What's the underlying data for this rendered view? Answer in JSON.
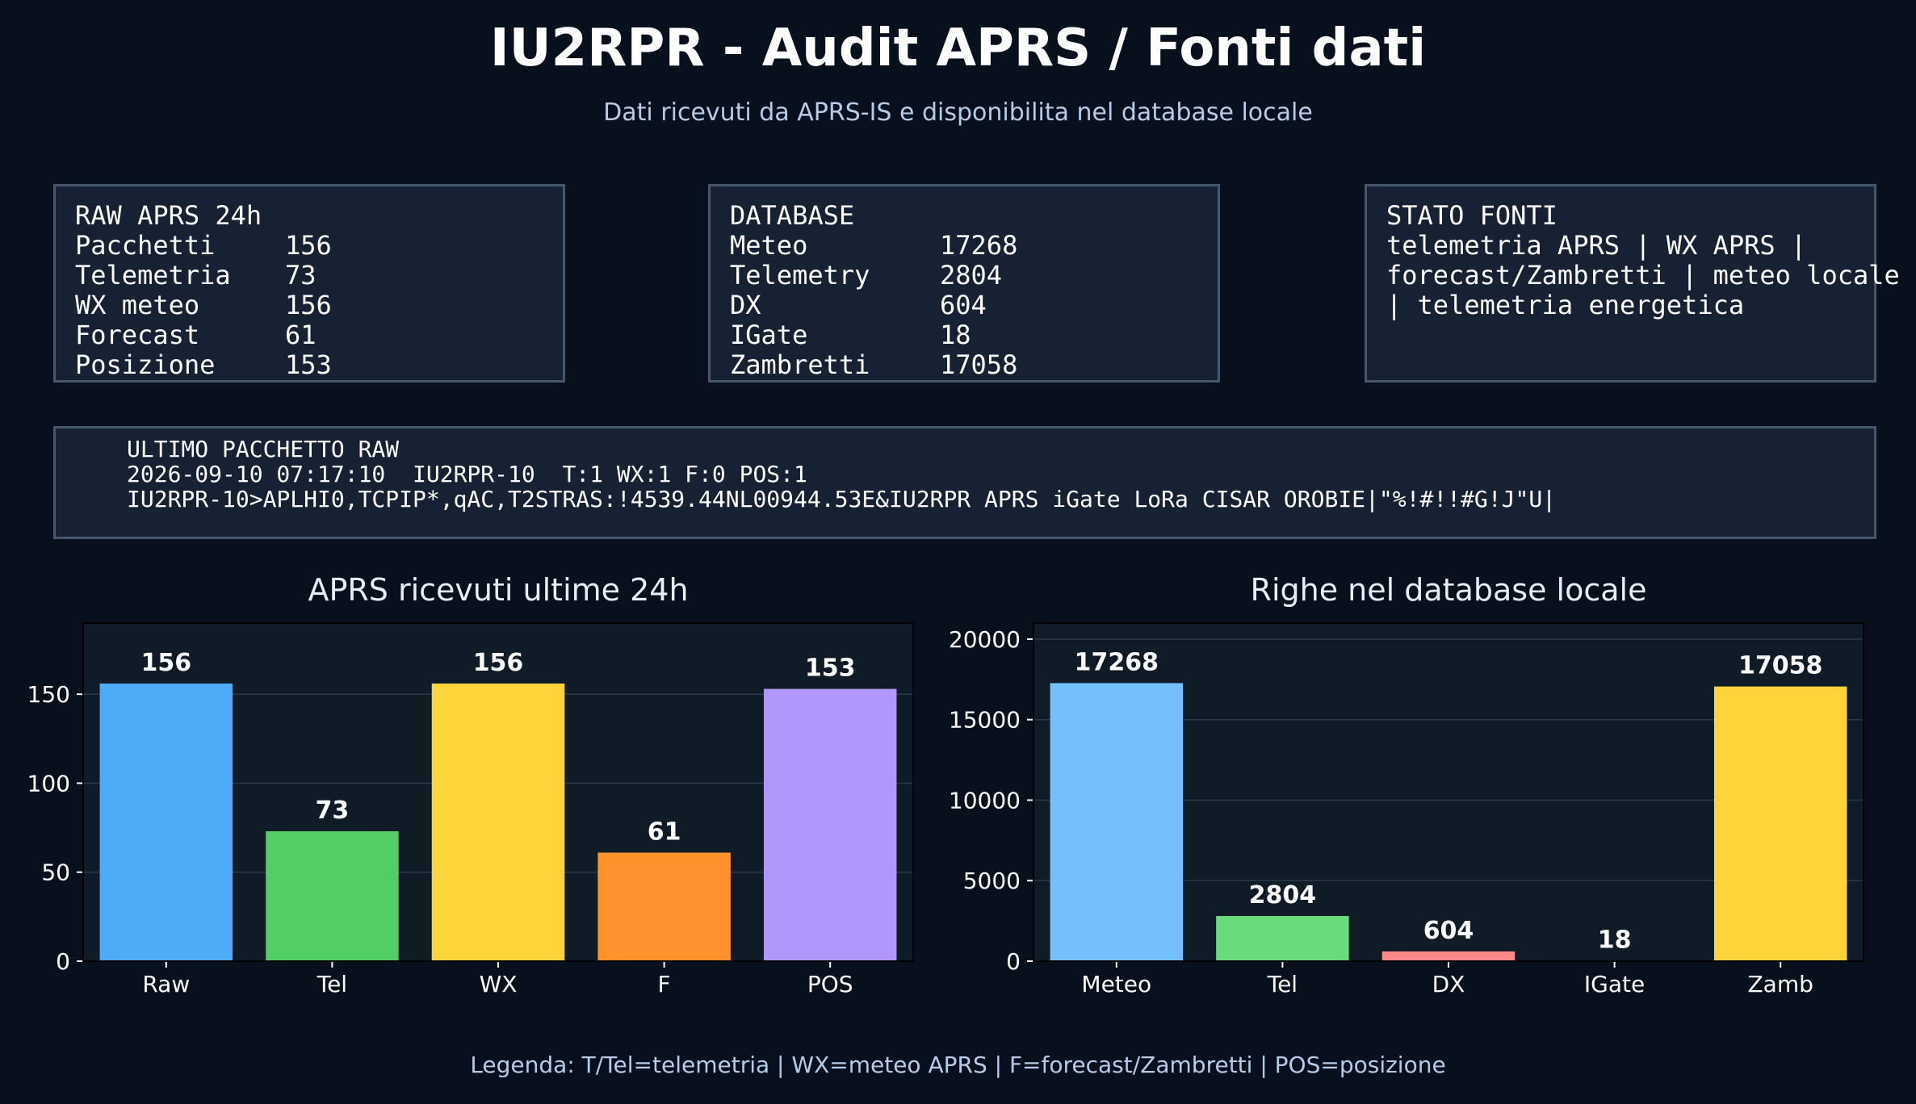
{
  "header": {
    "title": "IU2RPR - Audit APRS / Fonti dati",
    "subtitle": "Dati ricevuti da APRS-IS e disponibilita nel database locale"
  },
  "raw_box": {
    "heading": "RAW APRS 24h",
    "rows": [
      {
        "label": "Pacchetti",
        "value": "156"
      },
      {
        "label": "Telemetria",
        "value": "73"
      },
      {
        "label": "WX meteo",
        "value": "156"
      },
      {
        "label": "Forecast",
        "value": "61"
      },
      {
        "label": "Posizione",
        "value": "153"
      }
    ]
  },
  "db_box": {
    "heading": "DATABASE",
    "rows": [
      {
        "label": "Meteo",
        "value": "17268"
      },
      {
        "label": "Telemetry",
        "value": "2804"
      },
      {
        "label": "DX",
        "value": "604"
      },
      {
        "label": "IGate",
        "value": "18"
      },
      {
        "label": "Zambretti",
        "value": "17058"
      }
    ]
  },
  "stato_box": {
    "heading": "STATO FONTI",
    "lines": [
      "telemetria APRS | WX APRS |",
      "forecast/Zambretti | meteo locale",
      "| telemetria energetica"
    ]
  },
  "last_packet": {
    "heading": "ULTIMO PACCHETTO RAW",
    "line1": "2026-09-10 07:17:10  IU2RPR-10  T:1 WX:1 F:0 POS:1",
    "line2": "IU2RPR-10>APLHI0,TCPIP*,qAC,T2STRAS:!4539.44NL00944.53E&IU2RPR APRS iGate LoRa CISAR OROBIE|\"%!#!!#G!J\"U|"
  },
  "legend": "Legenda: T/Tel=telemetria | WX=meteo APRS | F=forecast/Zambretti | POS=posizione",
  "chart_data": [
    {
      "type": "bar",
      "title": "APRS ricevuti ultime 24h",
      "categories": [
        "Raw",
        "Tel",
        "WX",
        "F",
        "POS"
      ],
      "values": [
        156,
        73,
        156,
        61,
        153
      ],
      "colors": [
        "#4dabf7",
        "#51cf66",
        "#ffd43b",
        "#ff922b",
        "#b197fc"
      ],
      "yticks": [
        0,
        50,
        100,
        150
      ],
      "ylim": [
        0,
        190
      ],
      "grid": true,
      "xlabel": "",
      "ylabel": ""
    },
    {
      "type": "bar",
      "title": "Righe nel database locale",
      "categories": [
        "Meteo",
        "Tel",
        "DX",
        "IGate",
        "Zamb"
      ],
      "values": [
        17268,
        2804,
        604,
        18,
        17058
      ],
      "colors": [
        "#74c0fc",
        "#69db7c",
        "#ff8787",
        "#a9e34b",
        "#ffd43b"
      ],
      "yticks": [
        0,
        5000,
        10000,
        15000,
        20000
      ],
      "ylim": [
        0,
        21000
      ],
      "grid": true,
      "xlabel": "",
      "ylabel": ""
    }
  ]
}
